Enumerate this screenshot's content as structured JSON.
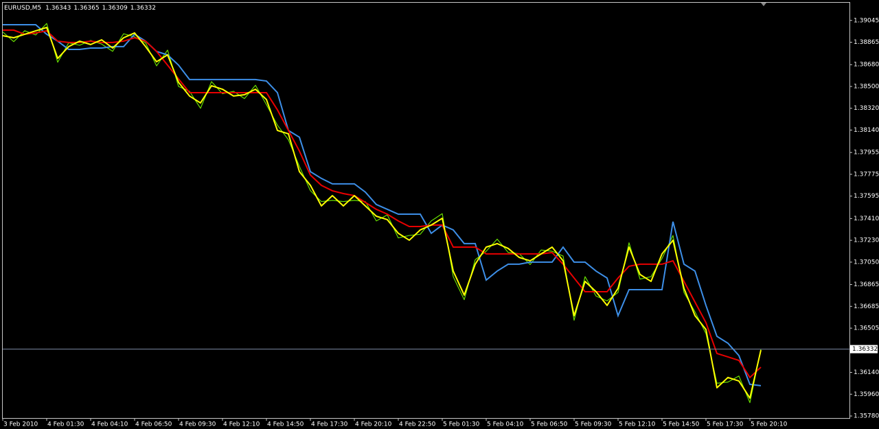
{
  "chart_data": {
    "type": "line",
    "title": "EURUSD,M5",
    "ohlc": [
      1.36343,
      1.36365,
      1.36309,
      1.36332
    ],
    "current_price": {
      "value": 1.36332,
      "label": "1.36332"
    },
    "categories": [
      "3 Feb 2010",
      null,
      null,
      null,
      "4 Feb 01:30",
      null,
      null,
      null,
      "4 Feb 04:10",
      null,
      null,
      null,
      "4 Feb 06:50",
      null,
      null,
      null,
      "4 Feb 09:30",
      null,
      null,
      null,
      "4 Feb 12:10",
      null,
      null,
      null,
      "4 Feb 14:50",
      null,
      null,
      null,
      "4 Feb 17:30",
      null,
      null,
      null,
      "4 Feb 20:10",
      null,
      null,
      null,
      "4 Feb 22:50",
      null,
      null,
      null,
      "5 Feb 01:30",
      null,
      null,
      null,
      "5 Feb 04:10",
      null,
      null,
      null,
      "5 Feb 06:50",
      null,
      null,
      null,
      "5 Feb 09:30",
      null,
      null,
      null,
      "5 Feb 12:10",
      null,
      null,
      null,
      "5 Feb 14:50",
      null,
      null,
      null,
      "5 Feb 17:30",
      null,
      null,
      null,
      "5 Feb 20:10",
      null
    ],
    "series": [
      {
        "color": "#66dd00",
        "values": [
          1.3895,
          1.3887,
          1.3896,
          1.38925,
          1.3902,
          1.387,
          1.3886,
          1.3884,
          1.3888,
          1.3885,
          1.3879,
          1.38935,
          1.3891,
          1.3886,
          1.3867,
          1.388,
          1.385,
          1.3846,
          1.3832,
          1.3854,
          1.3844,
          1.3846,
          1.384,
          1.3851,
          1.3835,
          1.3818,
          1.3806,
          1.3784,
          1.3764,
          1.3755,
          1.3756,
          1.3755,
          1.3756,
          1.3755,
          1.3739,
          1.3744,
          1.3725,
          1.3727,
          1.3728,
          1.3739,
          1.3745,
          1.3693,
          1.3674,
          1.3707,
          1.3714,
          1.3724,
          1.3713,
          1.3712,
          1.3703,
          1.3715,
          1.3714,
          1.371,
          1.3657,
          1.3693,
          1.3677,
          1.3673,
          1.368,
          1.3721,
          1.3691,
          1.3693,
          1.3708,
          1.3727,
          1.368,
          1.3664,
          1.3646,
          1.3605,
          1.3606,
          1.3611,
          1.3589,
          1.36332
        ]
      },
      {
        "color": "#3d8fe8",
        "values": [
          1.3901,
          1.3901,
          1.3901,
          1.3901,
          1.38931,
          1.38874,
          1.38806,
          1.38806,
          1.38817,
          1.38817,
          1.38829,
          1.38829,
          1.38931,
          1.38874,
          1.38789,
          1.38761,
          1.38676,
          1.38557,
          1.38557,
          1.38557,
          1.38557,
          1.38557,
          1.38557,
          1.38557,
          1.38545,
          1.38449,
          1.38137,
          1.38081,
          1.37797,
          1.37741,
          1.37696,
          1.37696,
          1.37696,
          1.37628,
          1.37526,
          1.37486,
          1.37446,
          1.37446,
          1.37446,
          1.37288,
          1.37356,
          1.37316,
          1.37203,
          1.37203,
          1.36902,
          1.36976,
          1.37033,
          1.37033,
          1.3705,
          1.3705,
          1.3705,
          1.37174,
          1.3705,
          1.3705,
          1.36976,
          1.36919,
          1.36608,
          1.36823,
          1.36823,
          1.36823,
          1.36823,
          1.37384,
          1.37033,
          1.36976,
          1.36693,
          1.36438,
          1.36381,
          1.36279,
          1.36041,
          1.3603
        ]
      },
      {
        "color": "#e80000",
        "values": [
          1.38965,
          1.38965,
          1.38931,
          1.38942,
          1.38959,
          1.38874,
          1.38863,
          1.38863,
          1.38874,
          1.38863,
          1.38863,
          1.38874,
          1.38902,
          1.38874,
          1.38789,
          1.38676,
          1.38562,
          1.38449,
          1.38449,
          1.38449,
          1.38449,
          1.38449,
          1.38449,
          1.38449,
          1.38449,
          1.38307,
          1.38137,
          1.37967,
          1.37769,
          1.37684,
          1.37639,
          1.37616,
          1.37599,
          1.37543,
          1.37486,
          1.37446,
          1.3739,
          1.37344,
          1.37344,
          1.37356,
          1.37356,
          1.37174,
          1.37174,
          1.37174,
          1.37118,
          1.37118,
          1.37118,
          1.37118,
          1.37118,
          1.37118,
          1.37129,
          1.37033,
          1.36919,
          1.36806,
          1.36806,
          1.36806,
          1.36919,
          1.37016,
          1.37033,
          1.37033,
          1.37033,
          1.37061,
          1.36891,
          1.36721,
          1.36551,
          1.36296,
          1.36268,
          1.36239,
          1.36098,
          1.36183
        ]
      },
      {
        "color": "#ffff00",
        "values": [
          1.38919,
          1.38902,
          1.38931,
          1.38959,
          1.38987,
          1.38732,
          1.38829,
          1.38874,
          1.38846,
          1.38885,
          1.38817,
          1.38902,
          1.38942,
          1.38829,
          1.38704,
          1.38761,
          1.38534,
          1.38421,
          1.38364,
          1.38506,
          1.38477,
          1.38421,
          1.38432,
          1.38477,
          1.38392,
          1.38137,
          1.38109,
          1.37797,
          1.37684,
          1.37514,
          1.37599,
          1.37514,
          1.37599,
          1.37514,
          1.37429,
          1.37401,
          1.37288,
          1.37231,
          1.37316,
          1.37356,
          1.37412,
          1.36976,
          1.36778,
          1.37033,
          1.37174,
          1.37203,
          1.37163,
          1.37089,
          1.37061,
          1.37118,
          1.37174,
          1.37061,
          1.36608,
          1.36891,
          1.36806,
          1.36693,
          1.36834,
          1.37174,
          1.36948,
          1.36891,
          1.37118,
          1.37231,
          1.36834,
          1.36608,
          1.36494,
          1.36013,
          1.36098,
          1.36069,
          1.35928,
          1.36324
        ]
      }
    ],
    "ylim": [
      1.35769,
      1.39191
    ],
    "yticks": [
      1.39045,
      1.38865,
      {
        "value": 1.3868,
        "label": "1.38680"
      },
      {
        "value": 1.385,
        "label": "1.38500"
      },
      {
        "value": 1.3832,
        "label": "1.38320"
      },
      {
        "value": 1.3814,
        "label": "1.38140"
      },
      1.37955,
      1.37775,
      1.37595,
      {
        "value": 1.3741,
        "label": "1.37410"
      },
      {
        "value": 1.3723,
        "label": "1.37230"
      },
      {
        "value": 1.3705,
        "label": "1.37050"
      },
      1.36865,
      1.36685,
      1.36505,
      {
        "value": 1.3614,
        "label": "1.36140"
      },
      {
        "value": 1.3596,
        "label": "1.35960"
      },
      {
        "value": 1.3578,
        "label": "1.35780"
      }
    ],
    "grid": false
  }
}
